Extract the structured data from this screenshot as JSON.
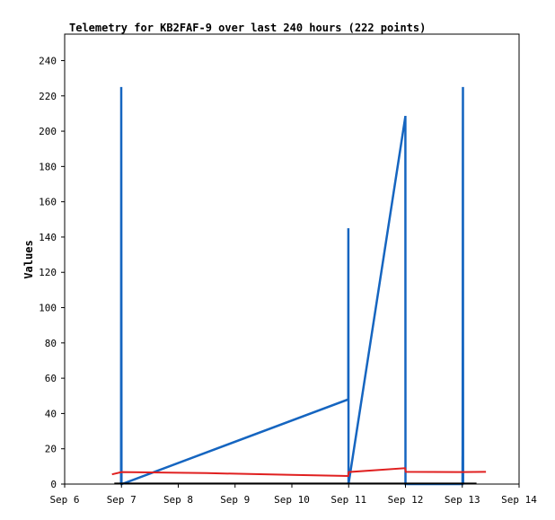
{
  "chart_data": {
    "type": "line",
    "title": "Telemetry for KB2FAF-9 over last 240 hours (222 points)",
    "xlabel": "",
    "ylabel": "Values",
    "xlim": [
      "2025-09-06",
      "2025-09-14"
    ],
    "ylim": [
      0,
      255
    ],
    "x_ticks": [
      "Sep 6",
      "Sep 7",
      "Sep 8",
      "Sep 9",
      "Sep 10",
      "Sep 11",
      "Sep 12",
      "Sep 13",
      "Sep 14"
    ],
    "y_ticks": [
      0,
      20,
      40,
      60,
      80,
      100,
      120,
      140,
      160,
      180,
      200,
      220,
      240
    ],
    "grid": false,
    "legend": "none",
    "series": [
      {
        "color": "#1565c0",
        "points": [
          [
            "2025-09-06 23:50",
            0
          ],
          [
            "2025-09-06 23:55",
            225
          ],
          [
            "2025-09-07 00:00",
            0
          ],
          [
            "2025-09-07 00:10",
            0
          ],
          [
            "2025-09-10 23:50",
            48
          ],
          [
            "2025-09-10 23:53",
            145
          ],
          [
            "2025-09-10 23:56",
            0
          ],
          [
            "2025-09-11 23:55",
            208
          ],
          [
            "2025-09-11 23:58",
            208
          ],
          [
            "2025-09-12 00:01",
            0
          ],
          [
            "2025-09-13 00:05",
            0
          ],
          [
            "2025-09-13 00:07",
            16
          ],
          [
            "2025-09-13 00:09",
            0
          ],
          [
            "2025-09-13 00:12",
            88
          ],
          [
            "2025-09-13 00:14",
            200
          ],
          [
            "2025-09-13 00:17",
            225
          ],
          [
            "2025-09-13 00:19",
            80
          ],
          [
            "2025-09-13 00:21",
            0
          ]
        ]
      },
      {
        "color": "#e02020",
        "points": [
          [
            "2025-09-06 20:00",
            5.5
          ],
          [
            "2025-09-07 00:00",
            6.8
          ],
          [
            "2025-09-08 12:00",
            6.2
          ],
          [
            "2025-09-10 00:00",
            5.2
          ],
          [
            "2025-09-10 23:50",
            4.6
          ],
          [
            "2025-09-11 00:00",
            6.8
          ],
          [
            "2025-09-11 23:50",
            9.0
          ],
          [
            "2025-09-12 00:10",
            6.9
          ],
          [
            "2025-09-13 00:00",
            6.8
          ],
          [
            "2025-09-13 10:00",
            6.9
          ]
        ]
      },
      {
        "color": "#000000",
        "points": [
          [
            "2025-09-06 21:00",
            0.3
          ],
          [
            "2025-09-13 06:00",
            0.3
          ]
        ]
      }
    ]
  }
}
